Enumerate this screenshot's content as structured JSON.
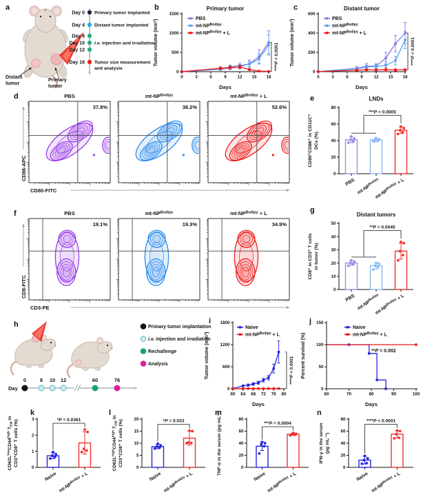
{
  "panel_letters": {
    "a": "a",
    "b": "b",
    "c": "c",
    "d": "d",
    "e": "e",
    "f": "f",
    "g": "g",
    "h": "h",
    "i": "i",
    "j": "j",
    "k": "k",
    "l": "l",
    "m": "m",
    "n": "n"
  },
  "panels": {
    "a": {
      "mouse_labels": {
        "distant": [
          "Distant",
          "tumor"
        ],
        "primary": [
          "Primary",
          "tumor"
        ]
      },
      "timeline": [
        {
          "day": "Day 0",
          "color": "#16213e",
          "label": [
            "Primary tumor implanted"
          ]
        },
        {
          "day": "Day 4",
          "color": "#2aa9e0",
          "label": [
            "Distant tumor implanted"
          ]
        },
        {
          "day": "Day 8",
          "color": "#1eb274",
          "label": []
        },
        {
          "day": "Day 10",
          "color": "#1eb274",
          "label": [
            "~{i.v.} injection and irradiation"
          ]
        },
        {
          "day": "Day 12",
          "color": "#1eb274",
          "label": []
        },
        {
          "day": "Day 18",
          "color": "#e8231e",
          "label": [
            "Tumor size measurement",
            "and analysis"
          ]
        }
      ]
    },
    "d": {
      "ylabel": "CD86-APC",
      "xlabel": "CD80-FITC",
      "plots": [
        {
          "title": "PBS",
          "pct": "37.8%",
          "color": "#9a3de8"
        },
        {
          "title": "mt-NP^{Bodipy}",
          "pct": "38.2%",
          "color": "#2b8cf0"
        },
        {
          "title": "mt-NP^{Bodipy} + L",
          "pct": "52.6%",
          "color": "#ee1d1d"
        }
      ]
    },
    "f": {
      "ylabel": "CD8-FITC",
      "xlabel": "CD3-PE",
      "plots": [
        {
          "title": "PBS",
          "pct": "19.1%",
          "color": "#9a3de8"
        },
        {
          "title": "mt-NP^{Bodipy}",
          "pct": "19.3%",
          "color": "#2b8cf0"
        },
        {
          "title": "mt-NP^{Bodipy} + L",
          "pct": "34.9%",
          "color": "#ee1d1d"
        }
      ]
    },
    "h": {
      "day_prefix": "Day",
      "ticks": [
        {
          "t": "0",
          "fill": "#111111",
          "stroke": "#111111"
        },
        {
          "t": "8",
          "fill": "#cdeef0",
          "stroke": "#5ab6be"
        },
        {
          "t": "10",
          "fill": "#cdeef0",
          "stroke": "#5ab6be"
        },
        {
          "t": "12",
          "fill": "#cdeef0",
          "stroke": "#5ab6be"
        },
        {
          "t": "60",
          "fill": "#16a56d",
          "stroke": "#16a56d"
        },
        {
          "t": "76",
          "fill": "#d6219c",
          "stroke": "#d6219c"
        }
      ],
      "legend": [
        {
          "text": "Primary tumor implantation",
          "fill": "#111111",
          "stroke": "#111111"
        },
        {
          "text": "~{i.v.} injection and irradiation",
          "fill": "#cdeef0",
          "stroke": "#5ab6be"
        },
        {
          "text": "Rechallenge",
          "fill": "#16a56d",
          "stroke": "#16a56d"
        },
        {
          "text": "Analysis",
          "fill": "#d6219c",
          "stroke": "#d6219c"
        }
      ]
    }
  },
  "chart_data": {
    "b": {
      "type": "line",
      "title": "Primary tumor",
      "xlabel": "Days",
      "ylabel": [
        "Tumor volume (mm³)"
      ],
      "xlim": [
        0,
        18
      ],
      "ylim": [
        0,
        1500
      ],
      "xticks": [
        0,
        3,
        6,
        9,
        12,
        15,
        18
      ],
      "yticks": [
        0,
        500,
        1000,
        1500
      ],
      "sig": "****~{P} < 0.0001",
      "legend_position": "top-left",
      "grid": false,
      "series": [
        {
          "name": "PBS",
          "color": "#8b72e3",
          "x": [
            0,
            8,
            10,
            12,
            14,
            16,
            18
          ],
          "y": [
            2,
            60,
            95,
            130,
            205,
            385,
            760
          ],
          "err": [
            0,
            25,
            45,
            55,
            95,
            185,
            300
          ]
        },
        {
          "name": "mt-NP^{Bodipy}",
          "color": "#55a0f2",
          "x": [
            0,
            8,
            10,
            12,
            14,
            16,
            18
          ],
          "y": [
            2,
            70,
            125,
            160,
            195,
            330,
            690
          ],
          "err": [
            0,
            30,
            50,
            60,
            70,
            120,
            260
          ]
        },
        {
          "name": "mt-NP^{Bodipy} + L",
          "color": "#f01414",
          "x": [
            0,
            8,
            10,
            12,
            14,
            16,
            18
          ],
          "y": [
            2,
            90,
            110,
            125,
            55,
            15,
            8
          ],
          "err": [
            0,
            35,
            40,
            45,
            25,
            10,
            5
          ]
        }
      ]
    },
    "c": {
      "type": "line",
      "title": "Distant tumor",
      "xlabel": "Days",
      "ylabel": [
        "Tumor volume (mm³)"
      ],
      "xlim": [
        0,
        18
      ],
      "ylim": [
        0,
        600
      ],
      "xticks": [
        0,
        3,
        6,
        9,
        12,
        15,
        18
      ],
      "yticks": [
        0,
        200,
        400,
        600
      ],
      "sig": "****~{P} < 0.0001",
      "legend_position": "top-left",
      "grid": false,
      "series": [
        {
          "name": "PBS",
          "color": "#8b72e3",
          "x": [
            0,
            8,
            10,
            12,
            14,
            16,
            18
          ],
          "y": [
            1,
            35,
            55,
            60,
            140,
            290,
            400
          ],
          "err": [
            0,
            18,
            30,
            25,
            60,
            85,
            110
          ]
        },
        {
          "name": "mt-NP^{Bodipy}",
          "color": "#55a0f2",
          "x": [
            0,
            8,
            10,
            12,
            14,
            16,
            18
          ],
          "y": [
            1,
            30,
            48,
            55,
            65,
            115,
            330
          ],
          "err": [
            0,
            12,
            20,
            20,
            40,
            45,
            90
          ]
        },
        {
          "name": "mt-NP^{Bodipy} + L",
          "color": "#f01414",
          "x": [
            0,
            8,
            10,
            12,
            14,
            16,
            18
          ],
          "y": [
            1,
            15,
            20,
            18,
            20,
            18,
            20
          ],
          "err": [
            0,
            8,
            10,
            10,
            18,
            12,
            10
          ]
        }
      ]
    },
    "e": {
      "type": "bar",
      "title": "LNDs",
      "ylabel": [
        "CD80⁺CD86⁺ in CD11C⁺",
        "DCs (%)"
      ],
      "ylim": [
        0,
        80
      ],
      "yticks": [
        0,
        20,
        40,
        60,
        80
      ],
      "categories": [
        "PBS",
        "mt-NP^{Bodipy}",
        "mt-NP^{Bodipy} + L"
      ],
      "colors": [
        "#9b8ce8",
        "#8abaf2",
        "#f03030"
      ],
      "values": [
        41,
        41,
        52.5
      ],
      "errors": [
        3.5,
        2.5,
        4
      ],
      "points": [
        [
          37.5,
          39,
          41,
          42.5,
          45
        ],
        [
          39,
          40,
          41,
          41.5,
          43
        ],
        [
          48,
          50,
          52.5,
          55,
          57
        ]
      ],
      "sig": {
        "label": "***~{P} = 0.0005",
        "from": [
          0,
          1
        ],
        "to": 2
      }
    },
    "g": {
      "type": "bar",
      "title": "Distant tumors",
      "ylabel": [
        "CD8⁺ in CD3⁺ T cells",
        "in tumor (%)"
      ],
      "ylim": [
        0,
        50
      ],
      "yticks": [
        0,
        10,
        20,
        30,
        40,
        50
      ],
      "categories": [
        "PBS",
        "mt-NP^{Bodipy}",
        "mt-NP^{Bodipy} + L"
      ],
      "colors": [
        "#9b8ce8",
        "#8abaf2",
        "#f03030"
      ],
      "values": [
        20,
        18,
        29
      ],
      "errors": [
        1.8,
        2.5,
        6
      ],
      "points": [
        [
          18,
          19,
          20,
          21,
          22
        ],
        [
          15,
          17,
          18,
          19.5,
          20
        ],
        [
          22,
          26,
          29,
          35,
          36
        ]
      ],
      "sig": {
        "label": "**~{P} = 0.0045",
        "from": [
          0,
          1
        ],
        "to": 2
      }
    },
    "i": {
      "type": "line",
      "title": "",
      "xlabel": "Days",
      "ylabel": [
        "Tumor volume (mm³)"
      ],
      "xlim": [
        60,
        80
      ],
      "ylim": [
        0,
        1800
      ],
      "xticks": [
        60,
        64,
        68,
        72,
        76,
        80
      ],
      "yticks": [
        0,
        600,
        1200,
        1800
      ],
      "sig": "****~{P} < 0.0001",
      "legend_position": "top-left",
      "grid": false,
      "series": [
        {
          "name": "Naive",
          "color": "#2424dd",
          "x": [
            60,
            64,
            66,
            68,
            70,
            72,
            74,
            76,
            78
          ],
          "y": [
            5,
            80,
            100,
            130,
            165,
            235,
            300,
            550,
            1000
          ],
          "err": [
            0,
            25,
            30,
            35,
            40,
            50,
            60,
            120,
            300
          ]
        },
        {
          "name": "mt-NP^{Bodipy} + L",
          "color": "#f01414",
          "x": [
            60,
            64,
            66,
            68,
            70,
            72,
            74,
            76,
            78
          ],
          "y": [
            5,
            6,
            6,
            6,
            6,
            6,
            6,
            6,
            6
          ],
          "err": [
            0,
            0,
            0,
            0,
            0,
            0,
            0,
            0,
            0
          ]
        }
      ]
    },
    "j": {
      "type": "survival",
      "xlabel": "Days",
      "ylabel": [
        "Percent survival (%)"
      ],
      "xlim": [
        60,
        100
      ],
      "ylim": [
        0,
        150
      ],
      "xticks": [
        60,
        70,
        80,
        90,
        100
      ],
      "yticks": [
        0,
        50,
        100,
        150
      ],
      "sig_inline": "**~{P} = 0.002",
      "legend_position": "top",
      "grid": false,
      "series": [
        {
          "name": "Naive",
          "color": "#2424dd",
          "points": [
            [
              60,
              100
            ],
            [
              79,
              100
            ],
            [
              79,
              80
            ],
            [
              82.5,
              80
            ],
            [
              82.5,
              20
            ],
            [
              86.5,
              20
            ],
            [
              86.5,
              0
            ]
          ],
          "markers": [
            [
              70,
              100
            ],
            [
              79,
              80
            ],
            [
              82.5,
              20
            ],
            [
              86.5,
              0
            ]
          ]
        },
        {
          "name": "mt-NP^{Bodipy} + L",
          "color": "#f01414",
          "points": [
            [
              60,
              100
            ],
            [
              100,
              100
            ]
          ],
          "markers": [
            [
              100,
              100
            ]
          ]
        }
      ]
    },
    "k": {
      "type": "bar",
      "title": "",
      "ylabel": [
        "CD62L^{low}CD44^{high} T_{EM} in",
        "CD3⁺CD8⁺ T cells (%)"
      ],
      "ylim": [
        0,
        3
      ],
      "yticks": [
        0,
        1,
        2,
        3
      ],
      "categories": [
        "Naive",
        "mt-NP^{Bodipy} + L"
      ],
      "colors": [
        "#2424dd",
        "#f03030"
      ],
      "values": [
        0.72,
        1.52
      ],
      "errors": [
        0.18,
        0.7
      ],
      "points": [
        [
          0.55,
          0.65,
          0.72,
          0.82,
          0.95
        ],
        [
          0.95,
          1.05,
          1.15,
          2.2,
          2.35
        ]
      ],
      "sig": {
        "label": "*~{P} = 0.0361",
        "from": [
          0
        ],
        "to": 1
      }
    },
    "l": {
      "type": "bar",
      "title": "",
      "ylabel": [
        "CD62L^{high}CD44^{high} T_{CM} in",
        "CD3⁺CD8⁺ T cells (%)"
      ],
      "ylim": [
        0,
        20
      ],
      "yticks": [
        0,
        5,
        10,
        15,
        20
      ],
      "categories": [
        "Naive",
        "mt-NP^{Bodipy} + L"
      ],
      "colors": [
        "#2424dd",
        "#f03030"
      ],
      "values": [
        8.6,
        12.1
      ],
      "errors": [
        0.9,
        2.9
      ],
      "points": [
        [
          7.8,
          8.2,
          8.6,
          9.1,
          9.8
        ],
        [
          10,
          10.1,
          10.3,
          15,
          15.2
        ]
      ],
      "sig": {
        "label": "*~{P} = 0.033",
        "from": [
          0
        ],
        "to": 1
      }
    },
    "m": {
      "type": "bar",
      "title": "",
      "ylabel": [
        "TNF-α in the serum (pg mL⁻¹)"
      ],
      "ylim": [
        0,
        80
      ],
      "yticks": [
        0,
        20,
        40,
        60,
        80
      ],
      "categories": [
        "Naive",
        "mt-NP^{Bodipy} + L"
      ],
      "colors": [
        "#2424dd",
        "#f03030"
      ],
      "values": [
        35,
        55
      ],
      "errors": [
        7,
        2
      ],
      "points": [
        [
          23,
          35,
          38,
          40,
          42
        ],
        [
          53,
          54,
          55,
          55.5,
          57
        ]
      ],
      "sig": {
        "label": "***~{P} = 0.0004",
        "from": [
          0
        ],
        "to": 1
      }
    },
    "n": {
      "type": "bar",
      "title": "",
      "ylabel": [
        "IFN-γ in the serum",
        "(pg mL⁻¹)"
      ],
      "ylim": [
        0,
        80
      ],
      "yticks": [
        0,
        20,
        40,
        60,
        80
      ],
      "categories": [
        "Naive",
        "mt-NP^{Bodipy} + L"
      ],
      "colors": [
        "#2424dd",
        "#f03030"
      ],
      "values": [
        12,
        55
      ],
      "errors": [
        6.5,
        6
      ],
      "points": [
        [
          6,
          7,
          12,
          15,
          19
        ],
        [
          48,
          49,
          55,
          60,
          61
        ]
      ],
      "sig": {
        "label": "****~{P} < 0.0001",
        "from": [
          0
        ],
        "to": 1
      }
    }
  }
}
